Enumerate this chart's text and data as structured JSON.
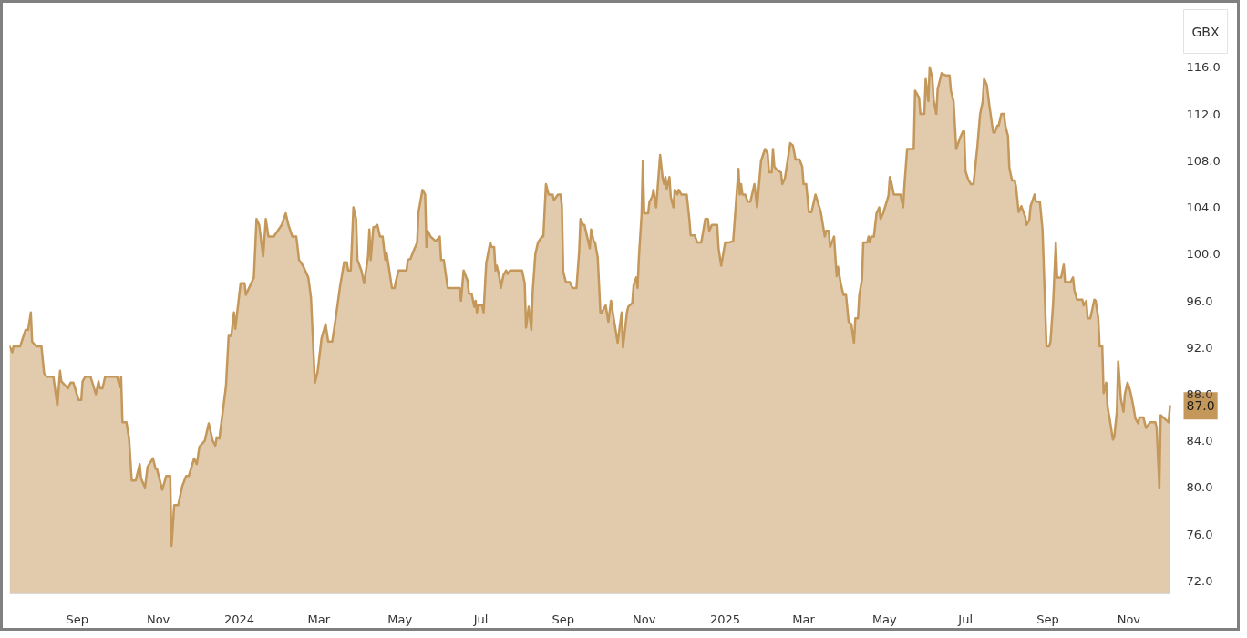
{
  "chart_data": {
    "type": "area",
    "ylabel": "GBX",
    "grid": false,
    "xlim": [
      "2023-07-12",
      "2025-12-02"
    ],
    "ylim": [
      70.9,
      121.1
    ],
    "xticks": [
      {
        "value": "2023-09-01",
        "label": "Sep"
      },
      {
        "value": "2023-11-01",
        "label": "Nov"
      },
      {
        "value": "2024-01-01",
        "label": "2024"
      },
      {
        "value": "2024-03-01",
        "label": "Mar"
      },
      {
        "value": "2024-05-01",
        "label": "May"
      },
      {
        "value": "2024-07-01",
        "label": "Jul"
      },
      {
        "value": "2024-09-01",
        "label": "Sep"
      },
      {
        "value": "2024-11-01",
        "label": "Nov"
      },
      {
        "value": "2025-01-01",
        "label": "2025"
      },
      {
        "value": "2025-03-01",
        "label": "Mar"
      },
      {
        "value": "2025-05-01",
        "label": "May"
      },
      {
        "value": "2025-07-01",
        "label": "Jul"
      },
      {
        "value": "2025-09-01",
        "label": "Sep"
      },
      {
        "value": "2025-11-01",
        "label": "Nov"
      }
    ],
    "yticks": [
      {
        "value": 72,
        "label": "72.0"
      },
      {
        "value": 76,
        "label": "76.0"
      },
      {
        "value": 80,
        "label": "80.0"
      },
      {
        "value": 84,
        "label": "84.0"
      },
      {
        "value": 88,
        "label": "88.0"
      },
      {
        "value": 92,
        "label": "92.0"
      },
      {
        "value": 96,
        "label": "96.0"
      },
      {
        "value": 100,
        "label": "100.0"
      },
      {
        "value": 104,
        "label": "104.0"
      },
      {
        "value": 108,
        "label": "108.0"
      },
      {
        "value": 112,
        "label": "112.0"
      },
      {
        "value": 116,
        "label": "116.0"
      }
    ],
    "annotations": [
      {
        "text": "87.0",
        "x": "2025-12-02",
        "y": 87.0
      }
    ],
    "x": [
      "2023-07-12",
      "2023-07-14",
      "2023-07-15",
      "2023-07-20",
      "2023-07-24",
      "2023-07-26",
      "2023-07-28",
      "2023-07-29",
      "2023-08-01",
      "2023-08-05",
      "2023-08-07",
      "2023-08-09",
      "2023-08-14",
      "2023-08-17",
      "2023-08-19",
      "2023-08-20",
      "2023-08-25",
      "2023-08-27",
      "2023-08-29",
      "2023-09-02",
      "2023-09-04",
      "2023-09-05",
      "2023-09-07",
      "2023-09-11",
      "2023-09-15",
      "2023-09-17",
      "2023-09-18",
      "2023-09-20",
      "2023-09-22",
      "2023-10-01",
      "2023-10-03",
      "2023-10-04",
      "2023-10-05",
      "2023-10-08",
      "2023-10-10",
      "2023-10-12",
      "2023-10-15",
      "2023-10-18",
      "2023-10-19",
      "2023-10-22",
      "2023-10-24",
      "2023-10-28",
      "2023-10-30",
      "2023-10-31",
      "2023-11-04",
      "2023-11-07",
      "2023-11-10",
      "2023-11-11",
      "2023-11-13",
      "2023-11-16",
      "2023-11-19",
      "2023-11-22",
      "2023-11-24",
      "2023-11-28",
      "2023-11-30",
      "2023-12-02",
      "2023-12-06",
      "2023-12-09",
      "2023-12-12",
      "2023-12-14",
      "2023-12-15",
      "2023-12-17",
      "2023-12-22",
      "2023-12-24",
      "2023-12-26",
      "2023-12-28",
      "2023-12-29",
      "2024-01-02",
      "2024-01-05",
      "2024-01-06",
      "2024-01-10",
      "2024-01-12",
      "2024-01-14",
      "2024-01-16",
      "2024-01-19",
      "2024-01-21",
      "2024-01-23",
      "2024-01-27",
      "2024-01-30",
      "2024-02-02",
      "2024-02-05",
      "2024-02-07",
      "2024-02-10",
      "2024-02-13",
      "2024-02-15",
      "2024-02-18",
      "2024-02-22",
      "2024-02-24",
      "2024-02-27",
      "2024-02-29",
      "2024-03-03",
      "2024-03-06",
      "2024-03-08",
      "2024-03-11",
      "2024-03-13",
      "2024-03-17",
      "2024-03-20",
      "2024-03-22",
      "2024-03-23",
      "2024-03-25",
      "2024-03-27",
      "2024-03-29",
      "2024-03-30",
      "2024-04-02",
      "2024-04-04",
      "2024-04-07",
      "2024-04-08",
      "2024-04-09",
      "2024-04-11",
      "2024-04-12",
      "2024-04-14",
      "2024-04-16",
      "2024-04-18",
      "2024-04-20",
      "2024-04-21",
      "2024-04-25",
      "2024-04-27",
      "2024-04-28",
      "2024-04-30",
      "2024-05-06",
      "2024-05-07",
      "2024-05-09",
      "2024-05-11",
      "2024-05-14",
      "2024-05-15",
      "2024-05-18",
      "2024-05-20",
      "2024-05-21",
      "2024-05-22",
      "2024-05-24",
      "2024-05-28",
      "2024-05-31",
      "2024-06-01",
      "2024-06-03",
      "2024-06-06",
      "2024-06-15",
      "2024-06-16",
      "2024-06-18",
      "2024-06-21",
      "2024-06-22",
      "2024-06-24",
      "2024-06-26",
      "2024-06-27",
      "2024-06-28",
      "2024-06-29",
      "2024-07-02",
      "2024-07-03",
      "2024-07-05",
      "2024-07-08",
      "2024-07-09",
      "2024-07-11",
      "2024-07-12",
      "2024-07-13",
      "2024-07-15",
      "2024-07-16",
      "2024-07-18",
      "2024-07-20",
      "2024-07-21",
      "2024-07-23",
      "2024-08-01",
      "2024-08-03",
      "2024-08-04",
      "2024-08-06",
      "2024-08-08",
      "2024-08-09",
      "2024-08-11",
      "2024-08-13",
      "2024-08-16",
      "2024-08-17",
      "2024-08-19",
      "2024-08-21",
      "2024-08-24",
      "2024-08-25",
      "2024-08-28",
      "2024-08-30",
      "2024-08-31",
      "2024-09-01",
      "2024-09-03",
      "2024-09-06",
      "2024-09-08",
      "2024-09-11",
      "2024-09-13",
      "2024-09-14",
      "2024-09-16",
      "2024-09-17",
      "2024-09-19",
      "2024-09-21",
      "2024-09-22",
      "2024-09-24",
      "2024-09-25",
      "2024-09-27",
      "2024-09-29",
      "2024-09-30",
      "2024-10-03",
      "2024-10-05",
      "2024-10-07",
      "2024-10-09",
      "2024-10-12",
      "2024-10-15",
      "2024-10-16",
      "2024-10-19",
      "2024-10-20",
      "2024-10-23",
      "2024-10-24",
      "2024-10-26",
      "2024-10-27",
      "2024-10-28",
      "2024-10-30",
      "2024-10-31",
      "2024-11-01",
      "2024-11-04",
      "2024-11-05",
      "2024-11-07",
      "2024-11-08",
      "2024-11-10",
      "2024-11-13",
      "2024-11-15",
      "2024-11-16",
      "2024-11-17",
      "2024-11-18",
      "2024-11-20",
      "2024-11-21",
      "2024-11-23",
      "2024-11-24",
      "2024-11-26",
      "2024-11-27",
      "2024-11-29",
      "2024-12-03",
      "2024-12-05",
      "2024-12-06",
      "2024-12-09",
      "2024-12-11",
      "2024-12-14",
      "2024-12-17",
      "2024-12-19",
      "2024-12-20",
      "2024-12-22",
      "2024-12-26",
      "2024-12-27",
      "2024-12-29",
      "2025-01-01",
      "2025-01-04",
      "2025-01-07",
      "2025-01-11",
      "2025-01-12",
      "2025-01-13",
      "2025-01-14",
      "2025-01-16",
      "2025-01-18",
      "2025-01-20",
      "2025-01-23",
      "2025-01-25",
      "2025-01-28",
      "2025-01-31",
      "2025-02-02",
      "2025-02-03",
      "2025-02-05",
      "2025-02-06",
      "2025-02-07",
      "2025-02-09",
      "2025-02-12",
      "2025-02-13",
      "2025-02-15",
      "2025-02-19",
      "2025-02-21",
      "2025-02-23",
      "2025-02-26",
      "2025-02-28",
      "2025-03-01",
      "2025-03-03",
      "2025-03-05",
      "2025-03-07",
      "2025-03-10",
      "2025-03-13",
      "2025-03-14",
      "2025-03-17",
      "2025-03-18",
      "2025-03-20",
      "2025-03-21",
      "2025-03-24",
      "2025-03-25",
      "2025-03-26",
      "2025-03-27",
      "2025-03-29",
      "2025-03-31",
      "2025-04-02",
      "2025-04-04",
      "2025-04-06",
      "2025-04-08",
      "2025-04-09",
      "2025-04-11",
      "2025-04-12",
      "2025-04-14",
      "2025-04-15",
      "2025-04-18",
      "2025-04-19",
      "2025-04-20",
      "2025-04-21",
      "2025-04-23",
      "2025-04-25",
      "2025-04-27",
      "2025-04-28",
      "2025-04-30",
      "2025-05-04",
      "2025-05-05",
      "2025-05-06",
      "2025-05-08",
      "2025-05-13",
      "2025-05-15",
      "2025-05-16",
      "2025-05-18",
      "2025-05-23",
      "2025-05-24",
      "2025-05-27",
      "2025-05-28",
      "2025-05-31",
      "2025-06-01",
      "2025-06-03",
      "2025-06-04",
      "2025-06-06",
      "2025-06-07",
      "2025-06-09",
      "2025-06-10",
      "2025-06-13",
      "2025-06-16",
      "2025-06-19",
      "2025-06-20",
      "2025-06-22",
      "2025-06-24",
      "2025-06-27",
      "2025-06-29",
      "2025-06-30",
      "2025-07-01",
      "2025-07-03",
      "2025-07-05",
      "2025-07-07",
      "2025-07-10",
      "2025-07-12",
      "2025-07-14",
      "2025-07-15",
      "2025-07-17",
      "2025-07-19",
      "2025-07-21",
      "2025-07-22",
      "2025-07-23",
      "2025-07-25",
      "2025-07-26",
      "2025-07-28",
      "2025-07-30",
      "2025-07-31",
      "2025-08-02",
      "2025-08-03",
      "2025-08-05",
      "2025-08-07",
      "2025-08-08",
      "2025-08-10",
      "2025-08-12",
      "2025-08-13",
      "2025-08-15",
      "2025-08-16",
      "2025-08-18",
      "2025-08-19",
      "2025-08-22",
      "2025-08-23",
      "2025-08-26",
      "2025-08-28",
      "2025-08-31",
      "2025-09-02",
      "2025-09-03",
      "2025-09-05",
      "2025-09-07",
      "2025-09-08",
      "2025-09-11",
      "2025-09-13",
      "2025-09-14",
      "2025-09-18",
      "2025-09-20",
      "2025-09-21",
      "2025-09-23",
      "2025-09-27",
      "2025-09-28",
      "2025-09-30",
      "2025-10-01",
      "2025-10-03",
      "2025-10-06",
      "2025-10-07",
      "2025-10-09",
      "2025-10-10",
      "2025-10-12",
      "2025-10-13",
      "2025-10-15",
      "2025-10-16",
      "2025-10-18",
      "2025-10-20",
      "2025-10-21",
      "2025-10-23",
      "2025-10-24",
      "2025-10-26",
      "2025-10-28",
      "2025-10-29",
      "2025-10-31",
      "2025-11-02",
      "2025-11-04",
      "2025-11-06",
      "2025-11-08",
      "2025-11-09",
      "2025-11-12",
      "2025-11-14",
      "2025-11-17",
      "2025-11-21",
      "2025-11-22",
      "2025-11-24",
      "2025-11-25",
      "2025-11-27",
      "2025-11-29",
      "2025-12-01",
      "2025-12-02"
    ],
    "series": [
      {
        "color": "#c4975a",
        "values": [
          92.1,
          91.6,
          92.1,
          92.1,
          93.5,
          93.5,
          95.0,
          92.5,
          92.1,
          92.1,
          89.8,
          89.5,
          89.5,
          87.0,
          90.0,
          89.1,
          88.5,
          89.0,
          89.0,
          87.5,
          87.5,
          89.1,
          89.5,
          89.5,
          88.0,
          89.1,
          88.5,
          88.5,
          89.5,
          89.5,
          88.6,
          89.5,
          85.6,
          85.6,
          84.2,
          80.6,
          80.6,
          82.0,
          80.8,
          80.0,
          81.8,
          82.5,
          81.6,
          81.6,
          79.8,
          81.0,
          81.0,
          75.0,
          78.5,
          78.5,
          80.1,
          81.0,
          81.0,
          82.5,
          82.0,
          83.5,
          84.0,
          85.5,
          84.0,
          83.6,
          84.3,
          84.2,
          88.7,
          93.0,
          93.0,
          95.0,
          93.6,
          97.5,
          97.5,
          96.5,
          97.5,
          98.0,
          103.0,
          102.5,
          99.8,
          103.0,
          101.5,
          101.5,
          102.0,
          102.5,
          103.5,
          102.5,
          101.5,
          101.5,
          99.5,
          99.0,
          98.0,
          96.3,
          89.0,
          89.9,
          92.8,
          94.0,
          92.5,
          92.5,
          94.0,
          97.3,
          99.3,
          99.3,
          98.6,
          98.6,
          104.0,
          103.0,
          99.5,
          98.6,
          97.5,
          99.8,
          102.1,
          99.5,
          102.3,
          102.3,
          102.5,
          101.5,
          101.5,
          99.5,
          100.1,
          97.1,
          97.1,
          97.7,
          98.6,
          98.6,
          99.5,
          99.6,
          100.2,
          101.0,
          103.6,
          105.5,
          105.1,
          100.6,
          102.0,
          101.5,
          101.1,
          101.5,
          99.5,
          99.5,
          97.1,
          97.1,
          96.0,
          98.6,
          97.7,
          96.6,
          96.6,
          95.5,
          96.0,
          95.0,
          95.6,
          95.6,
          95.0,
          99.2,
          101.0,
          100.6,
          100.6,
          98.6,
          99.0,
          98.0,
          97.1,
          98.2,
          98.6,
          98.3,
          98.6,
          98.6,
          97.5,
          93.7,
          95.5,
          93.5,
          96.8,
          100.0,
          101.0,
          101.5,
          101.5,
          106.0,
          105.1,
          105.1,
          104.6,
          105.1,
          105.1,
          104.1,
          98.5,
          97.6,
          97.6,
          97.1,
          97.1,
          100.2,
          103.0,
          102.5,
          102.5,
          101.5,
          100.5,
          102.1,
          101.1,
          101.0,
          99.7,
          95.0,
          95.0,
          95.6,
          94.2,
          96.0,
          94.5,
          92.4,
          95.0,
          92.0,
          95.0,
          95.5,
          95.8,
          97.3,
          98.0,
          97.1,
          99.7,
          103.3,
          108.0,
          103.5,
          103.5,
          104.5,
          104.9,
          105.5,
          104.0,
          108.5,
          106.4,
          106.0,
          106.6,
          105.6,
          106.6,
          104.9,
          104.0,
          105.5,
          105.1,
          105.5,
          105.1,
          105.1,
          103.0,
          101.6,
          101.6,
          101.0,
          101.0,
          103.0,
          103.0,
          102.0,
          102.5,
          102.5,
          100.5,
          99.0,
          101.0,
          101.0,
          101.1,
          107.3,
          105.1,
          106.0,
          105.1,
          105.1,
          104.5,
          104.5,
          106.0,
          104.0,
          108.0,
          109.0,
          108.6,
          107.0,
          107.0,
          109.0,
          107.5,
          107.2,
          107.0,
          106.0,
          106.5,
          109.5,
          109.3,
          108.1,
          108.1,
          107.5,
          106.0,
          106.0,
          103.6,
          103.6,
          105.1,
          104.0,
          103.6,
          101.5,
          102.0,
          102.0,
          100.6,
          101.5,
          99.7,
          98.1,
          98.9,
          97.5,
          96.5,
          96.5,
          94.2,
          94.0,
          92.4,
          94.5,
          94.5,
          96.5,
          97.8,
          101.0,
          101.0,
          101.5,
          101.0,
          101.5,
          101.5,
          103.5,
          104.0,
          103.0,
          103.5,
          105.0,
          106.6,
          106.2,
          105.1,
          105.1,
          104.0,
          105.9,
          109.0,
          109.0,
          114.0,
          113.4,
          112.0,
          112.0,
          115.0,
          113.1,
          116.0,
          115.1,
          113.2,
          112.0,
          114.1,
          115.5,
          115.3,
          115.3,
          114.0,
          113.1,
          109.0,
          110.0,
          110.5,
          110.5,
          107.1,
          106.4,
          106.0,
          106.0,
          109.3,
          112.0,
          113.1,
          115.0,
          114.5,
          112.7,
          111.1,
          110.4,
          110.4,
          111.0,
          111.0,
          112.0,
          112.0,
          111.0,
          110.1,
          107.4,
          106.3,
          106.3,
          105.8,
          103.6,
          104.1,
          103.8,
          103.2,
          102.5,
          102.9,
          104.1,
          105.1,
          104.5,
          104.5,
          102.1,
          92.1,
          92.1,
          92.5,
          95.8,
          101.0,
          98.0,
          98.0,
          99.1,
          97.6,
          97.6,
          98.0,
          96.9,
          96.1,
          96.1,
          95.6,
          96.0,
          94.5,
          94.5,
          96.1,
          96.0,
          94.5,
          92.1,
          92.1,
          88.1,
          89.0,
          86.9,
          85.6,
          84.1,
          84.3,
          86.5,
          90.8,
          87.6,
          86.5,
          88.0,
          89.0,
          88.3,
          87.2,
          85.9,
          85.5,
          86.0,
          86.0,
          85.1,
          85.6,
          85.6,
          85.1,
          80.0,
          86.2,
          86.0,
          85.8,
          85.6,
          87.0
        ]
      }
    ]
  }
}
